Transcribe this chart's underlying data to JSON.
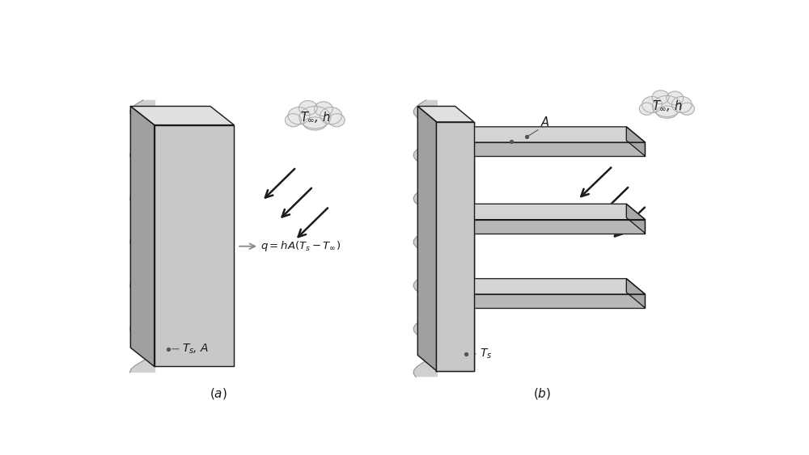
{
  "bg_color": "#ffffff",
  "wall_color_front": "#c8c8c8",
  "wall_color_side": "#a0a0a0",
  "wall_color_top": "#e0e0e0",
  "fin_color_top": "#d4d4d4",
  "fin_color_front": "#b8b8b8",
  "fin_color_side": "#a8a8a8",
  "wavy_color": "#d0d0d0",
  "cloud_color": "#e8e8e8",
  "cloud_edge": "#aaaaaa",
  "arrow_color": "#1a1a1a",
  "line_color": "#1a1a1a",
  "text_color": "#1a1a1a",
  "ann_color": "#555555",
  "q_arrow_color": "#888888",
  "label_a": "$(a)$",
  "label_b": "$(b)$",
  "eq_text": "$q = hA(T_s - T_\\infty)$",
  "ts_a_text": "$T_s$, $A$",
  "ts_b_text": "$T_s$",
  "A_text": "$A$",
  "cloud_text_a": "$T_\\infty$, $h$",
  "cloud_text_b": "$T_\\infty$, $h$"
}
